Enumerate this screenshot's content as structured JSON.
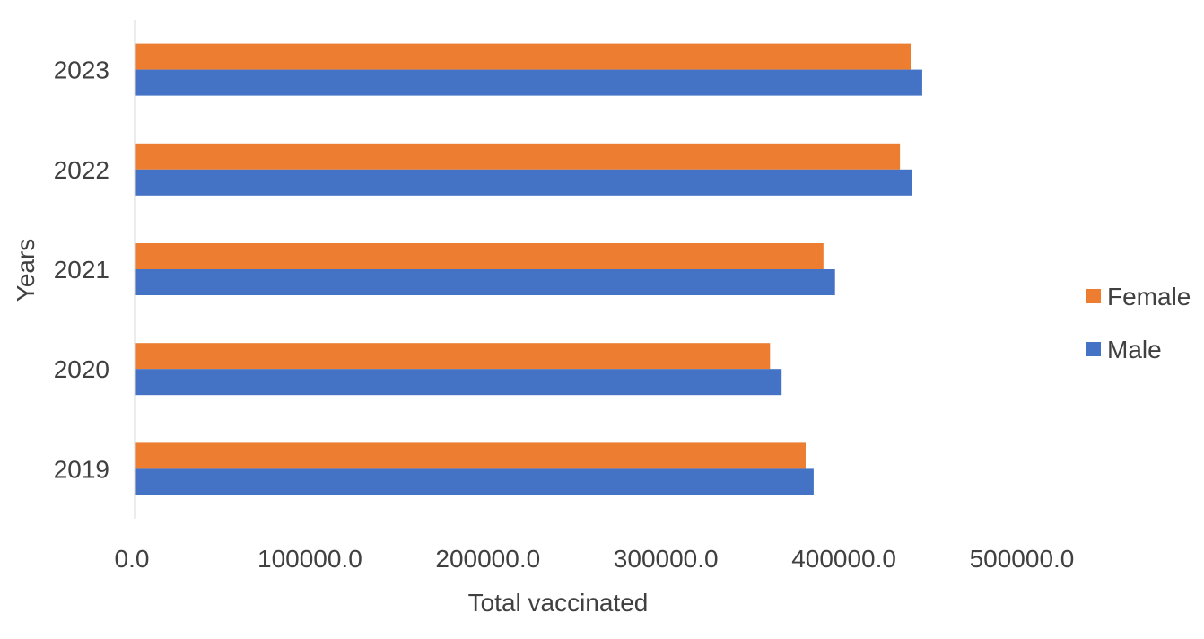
{
  "chart_data": {
    "type": "bar",
    "orientation": "horizontal",
    "title": "",
    "xlabel": "Total vaccinated",
    "ylabel": "Years",
    "categories": [
      "2019",
      "2020",
      "2021",
      "2022",
      "2023"
    ],
    "series": [
      {
        "name": "Male",
        "color": "#4472C4",
        "values": [
          381000,
          363000,
          393000,
          436000,
          442000
        ]
      },
      {
        "name": "Female",
        "color": "#ED7D31",
        "values": [
          376500,
          356500,
          386500,
          429500,
          435500
        ]
      }
    ],
    "xlim": [
      0,
      500000
    ],
    "x_ticks": [
      0,
      100000,
      200000,
      300000,
      400000,
      500000
    ],
    "x_tick_labels": [
      "0.0",
      "100000.0",
      "200000.0",
      "300000.0",
      "400000.0",
      "500000.0"
    ],
    "legend": {
      "placement": "right",
      "order": [
        "Female",
        "Male"
      ]
    },
    "grid": false
  }
}
